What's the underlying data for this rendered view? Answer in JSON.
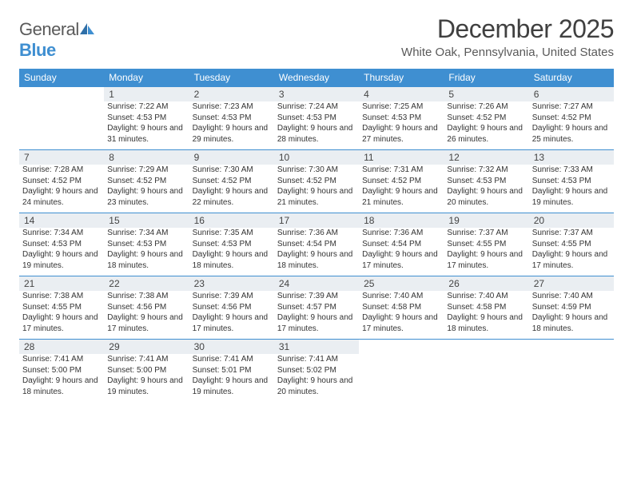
{
  "brand": {
    "part1": "General",
    "part2": "Blue"
  },
  "title": "December 2025",
  "location": "White Oak, Pennsylvania, United States",
  "colors": {
    "header_bar": "#3f8fd1",
    "daynum_bg": "#eaeef2",
    "text": "#333333",
    "title_text": "#404040",
    "border_top": "#3f8fd1"
  },
  "typography": {
    "title_fontsize": 32,
    "location_fontsize": 15,
    "dow_fontsize": 12,
    "daynum_fontsize": 12,
    "cell_fontsize": 10
  },
  "daysOfWeek": [
    "Sunday",
    "Monday",
    "Tuesday",
    "Wednesday",
    "Thursday",
    "Friday",
    "Saturday"
  ],
  "weeks": [
    [
      null,
      {
        "n": "1",
        "sr": "Sunrise: 7:22 AM",
        "ss": "Sunset: 4:53 PM",
        "dl": "Daylight: 9 hours and 31 minutes."
      },
      {
        "n": "2",
        "sr": "Sunrise: 7:23 AM",
        "ss": "Sunset: 4:53 PM",
        "dl": "Daylight: 9 hours and 29 minutes."
      },
      {
        "n": "3",
        "sr": "Sunrise: 7:24 AM",
        "ss": "Sunset: 4:53 PM",
        "dl": "Daylight: 9 hours and 28 minutes."
      },
      {
        "n": "4",
        "sr": "Sunrise: 7:25 AM",
        "ss": "Sunset: 4:53 PM",
        "dl": "Daylight: 9 hours and 27 minutes."
      },
      {
        "n": "5",
        "sr": "Sunrise: 7:26 AM",
        "ss": "Sunset: 4:52 PM",
        "dl": "Daylight: 9 hours and 26 minutes."
      },
      {
        "n": "6",
        "sr": "Sunrise: 7:27 AM",
        "ss": "Sunset: 4:52 PM",
        "dl": "Daylight: 9 hours and 25 minutes."
      }
    ],
    [
      {
        "n": "7",
        "sr": "Sunrise: 7:28 AM",
        "ss": "Sunset: 4:52 PM",
        "dl": "Daylight: 9 hours and 24 minutes."
      },
      {
        "n": "8",
        "sr": "Sunrise: 7:29 AM",
        "ss": "Sunset: 4:52 PM",
        "dl": "Daylight: 9 hours and 23 minutes."
      },
      {
        "n": "9",
        "sr": "Sunrise: 7:30 AM",
        "ss": "Sunset: 4:52 PM",
        "dl": "Daylight: 9 hours and 22 minutes."
      },
      {
        "n": "10",
        "sr": "Sunrise: 7:30 AM",
        "ss": "Sunset: 4:52 PM",
        "dl": "Daylight: 9 hours and 21 minutes."
      },
      {
        "n": "11",
        "sr": "Sunrise: 7:31 AM",
        "ss": "Sunset: 4:52 PM",
        "dl": "Daylight: 9 hours and 21 minutes."
      },
      {
        "n": "12",
        "sr": "Sunrise: 7:32 AM",
        "ss": "Sunset: 4:53 PM",
        "dl": "Daylight: 9 hours and 20 minutes."
      },
      {
        "n": "13",
        "sr": "Sunrise: 7:33 AM",
        "ss": "Sunset: 4:53 PM",
        "dl": "Daylight: 9 hours and 19 minutes."
      }
    ],
    [
      {
        "n": "14",
        "sr": "Sunrise: 7:34 AM",
        "ss": "Sunset: 4:53 PM",
        "dl": "Daylight: 9 hours and 19 minutes."
      },
      {
        "n": "15",
        "sr": "Sunrise: 7:34 AM",
        "ss": "Sunset: 4:53 PM",
        "dl": "Daylight: 9 hours and 18 minutes."
      },
      {
        "n": "16",
        "sr": "Sunrise: 7:35 AM",
        "ss": "Sunset: 4:53 PM",
        "dl": "Daylight: 9 hours and 18 minutes."
      },
      {
        "n": "17",
        "sr": "Sunrise: 7:36 AM",
        "ss": "Sunset: 4:54 PM",
        "dl": "Daylight: 9 hours and 18 minutes."
      },
      {
        "n": "18",
        "sr": "Sunrise: 7:36 AM",
        "ss": "Sunset: 4:54 PM",
        "dl": "Daylight: 9 hours and 17 minutes."
      },
      {
        "n": "19",
        "sr": "Sunrise: 7:37 AM",
        "ss": "Sunset: 4:55 PM",
        "dl": "Daylight: 9 hours and 17 minutes."
      },
      {
        "n": "20",
        "sr": "Sunrise: 7:37 AM",
        "ss": "Sunset: 4:55 PM",
        "dl": "Daylight: 9 hours and 17 minutes."
      }
    ],
    [
      {
        "n": "21",
        "sr": "Sunrise: 7:38 AM",
        "ss": "Sunset: 4:55 PM",
        "dl": "Daylight: 9 hours and 17 minutes."
      },
      {
        "n": "22",
        "sr": "Sunrise: 7:38 AM",
        "ss": "Sunset: 4:56 PM",
        "dl": "Daylight: 9 hours and 17 minutes."
      },
      {
        "n": "23",
        "sr": "Sunrise: 7:39 AM",
        "ss": "Sunset: 4:56 PM",
        "dl": "Daylight: 9 hours and 17 minutes."
      },
      {
        "n": "24",
        "sr": "Sunrise: 7:39 AM",
        "ss": "Sunset: 4:57 PM",
        "dl": "Daylight: 9 hours and 17 minutes."
      },
      {
        "n": "25",
        "sr": "Sunrise: 7:40 AM",
        "ss": "Sunset: 4:58 PM",
        "dl": "Daylight: 9 hours and 17 minutes."
      },
      {
        "n": "26",
        "sr": "Sunrise: 7:40 AM",
        "ss": "Sunset: 4:58 PM",
        "dl": "Daylight: 9 hours and 18 minutes."
      },
      {
        "n": "27",
        "sr": "Sunrise: 7:40 AM",
        "ss": "Sunset: 4:59 PM",
        "dl": "Daylight: 9 hours and 18 minutes."
      }
    ],
    [
      {
        "n": "28",
        "sr": "Sunrise: 7:41 AM",
        "ss": "Sunset: 5:00 PM",
        "dl": "Daylight: 9 hours and 18 minutes."
      },
      {
        "n": "29",
        "sr": "Sunrise: 7:41 AM",
        "ss": "Sunset: 5:00 PM",
        "dl": "Daylight: 9 hours and 19 minutes."
      },
      {
        "n": "30",
        "sr": "Sunrise: 7:41 AM",
        "ss": "Sunset: 5:01 PM",
        "dl": "Daylight: 9 hours and 19 minutes."
      },
      {
        "n": "31",
        "sr": "Sunrise: 7:41 AM",
        "ss": "Sunset: 5:02 PM",
        "dl": "Daylight: 9 hours and 20 minutes."
      },
      null,
      null,
      null
    ]
  ]
}
